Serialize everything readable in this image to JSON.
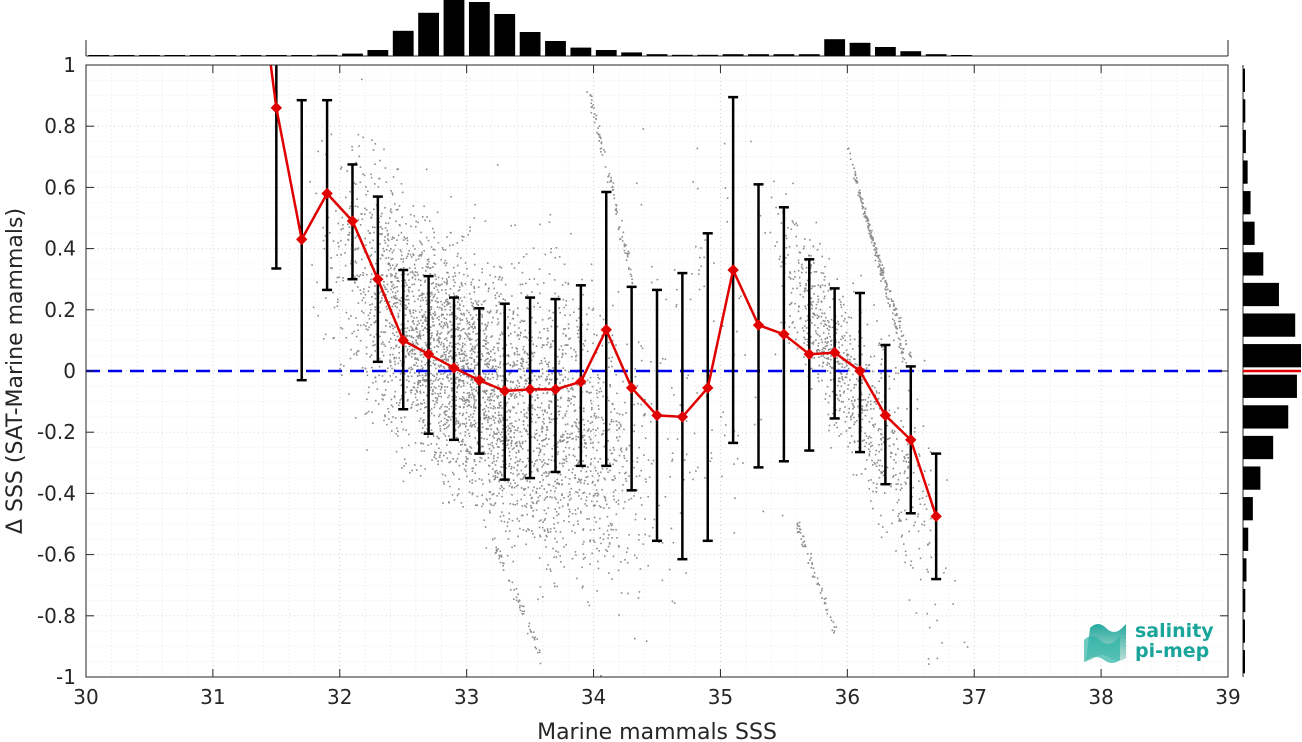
{
  "chart_data": {
    "type": "scatter",
    "xlabel": "Marine mammals SSS",
    "ylabel": "Δ SSS (SAT-Marine mammals)",
    "xlim": [
      30,
      39
    ],
    "ylim": [
      -1,
      1
    ],
    "xticks": [
      30,
      31,
      32,
      33,
      34,
      35,
      36,
      37,
      38,
      39
    ],
    "yticks": [
      -1,
      -0.8,
      -0.6,
      -0.4,
      -0.2,
      0,
      0.2,
      0.4,
      0.6,
      0.8,
      1
    ],
    "ytick_labels": [
      "-1",
      "-0.8",
      "-0.6",
      "-0.4",
      "-0.2",
      "0",
      "0.2",
      "0.4",
      "0.6",
      "0.8",
      "1"
    ],
    "grid": true,
    "zero_line": {
      "y": 0,
      "color": "#0000ee",
      "style": "dashed"
    },
    "binned_mean": {
      "color": "#e00000",
      "marker": "diamond",
      "x": [
        31.5,
        31.7,
        31.9,
        32.1,
        32.3,
        32.5,
        32.7,
        32.9,
        33.1,
        33.3,
        33.5,
        33.7,
        33.9,
        34.1,
        34.3,
        34.5,
        34.7,
        34.9,
        35.1,
        35.3,
        35.5,
        35.7,
        35.9,
        36.1,
        36.3,
        36.5,
        36.7
      ],
      "mean": [
        0.86,
        0.43,
        0.58,
        0.49,
        0.3,
        0.1,
        0.055,
        0.01,
        -0.03,
        -0.065,
        -0.06,
        -0.06,
        -0.035,
        0.135,
        -0.055,
        -0.145,
        -0.15,
        -0.055,
        0.33,
        0.15,
        0.12,
        0.055,
        0.06,
        0.0,
        -0.145,
        -0.225,
        -0.475
      ],
      "err_low": [
        0.335,
        -0.03,
        0.265,
        0.3,
        0.03,
        -0.125,
        -0.205,
        -0.225,
        -0.27,
        -0.355,
        -0.35,
        -0.33,
        -0.31,
        -0.31,
        -0.39,
        -0.555,
        -0.615,
        -0.555,
        -0.235,
        -0.315,
        -0.295,
        -0.26,
        -0.155,
        -0.265,
        -0.37,
        -0.465,
        -0.68
      ],
      "err_high": [
        1.05,
        0.885,
        0.885,
        0.675,
        0.57,
        0.33,
        0.31,
        0.24,
        0.205,
        0.22,
        0.24,
        0.235,
        0.28,
        0.585,
        0.275,
        0.265,
        0.32,
        0.45,
        0.895,
        0.61,
        0.535,
        0.365,
        0.27,
        0.255,
        0.085,
        0.015,
        -0.27
      ]
    },
    "scatter_color": "#8c8c8c",
    "top_histogram": {
      "bins": [
        30.1,
        30.3,
        30.5,
        30.7,
        30.9,
        31.1,
        31.3,
        31.5,
        31.7,
        31.9,
        32.1,
        32.3,
        32.5,
        32.7,
        32.9,
        33.1,
        33.3,
        33.5,
        33.7,
        33.9,
        34.1,
        34.3,
        34.5,
        34.7,
        34.9,
        35.1,
        35.3,
        35.5,
        35.7,
        35.9,
        36.1,
        36.3,
        36.5,
        36.7,
        36.9
      ],
      "counts": [
        0.005,
        0.005,
        0.005,
        0.005,
        0.005,
        0.005,
        0.005,
        0.01,
        0.015,
        0.02,
        0.04,
        0.1,
        0.42,
        0.72,
        0.95,
        0.9,
        0.7,
        0.4,
        0.25,
        0.14,
        0.1,
        0.06,
        0.03,
        0.02,
        0.02,
        0.03,
        0.03,
        0.03,
        0.03,
        0.28,
        0.22,
        0.15,
        0.08,
        0.03,
        0.005
      ]
    },
    "right_histogram": {
      "bins": [
        -0.95,
        -0.85,
        -0.75,
        -0.65,
        -0.55,
        -0.45,
        -0.35,
        -0.25,
        -0.15,
        -0.05,
        0.05,
        0.15,
        0.25,
        0.35,
        0.45,
        0.55,
        0.65,
        0.75,
        0.85,
        0.95
      ],
      "counts": [
        0.02,
        0.03,
        0.04,
        0.06,
        0.09,
        0.17,
        0.3,
        0.52,
        0.78,
        0.93,
        1.0,
        0.9,
        0.62,
        0.35,
        0.2,
        0.13,
        0.08,
        0.05,
        0.04,
        0.02
      ],
      "mean_line_color": "#e00000"
    }
  },
  "logo": {
    "line1": "salinity",
    "line2": "pi-mep",
    "color": "#1aa59a"
  }
}
